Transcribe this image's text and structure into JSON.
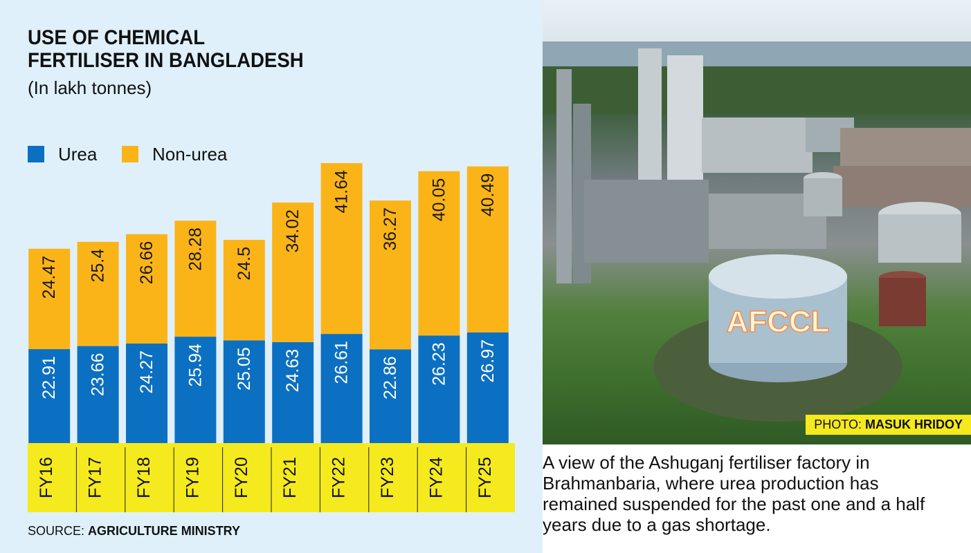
{
  "chart_data": {
    "type": "bar",
    "stacked": true,
    "orientation": "vertical",
    "title": "USE OF CHEMICAL FERTILISER IN BANGLADESH",
    "subtitle": "(In lakh tonnes)",
    "categories": [
      "FY16",
      "FY17",
      "FY18",
      "FY19",
      "FY20",
      "FY21",
      "FY22",
      "FY23",
      "FY24",
      "FY25"
    ],
    "series": [
      {
        "name": "Urea",
        "color": "#0c70c2",
        "values": [
          22.91,
          23.66,
          24.27,
          25.94,
          25.05,
          24.63,
          26.61,
          22.86,
          26.23,
          26.97
        ]
      },
      {
        "name": "Non-urea",
        "color": "#fbb417",
        "values": [
          24.47,
          25.4,
          26.66,
          28.28,
          24.5,
          34.02,
          41.64,
          36.27,
          40.05,
          40.49
        ]
      }
    ],
    "legend_position": "top-left",
    "grid": false,
    "category_band_color": "#f5ea1d",
    "source_label": "SOURCE:",
    "source_name": "AGRICULTURE MINISTRY"
  },
  "photo": {
    "credit_label": "PHOTO:",
    "credit_name": "MASUK HRIDOY",
    "sign_text": "AFCCL",
    "caption": "A view of the Ashuganj fertiliser factory in Brahmanbaria, where urea production has remained suspended for the past one and a half years due to a gas shortage."
  }
}
